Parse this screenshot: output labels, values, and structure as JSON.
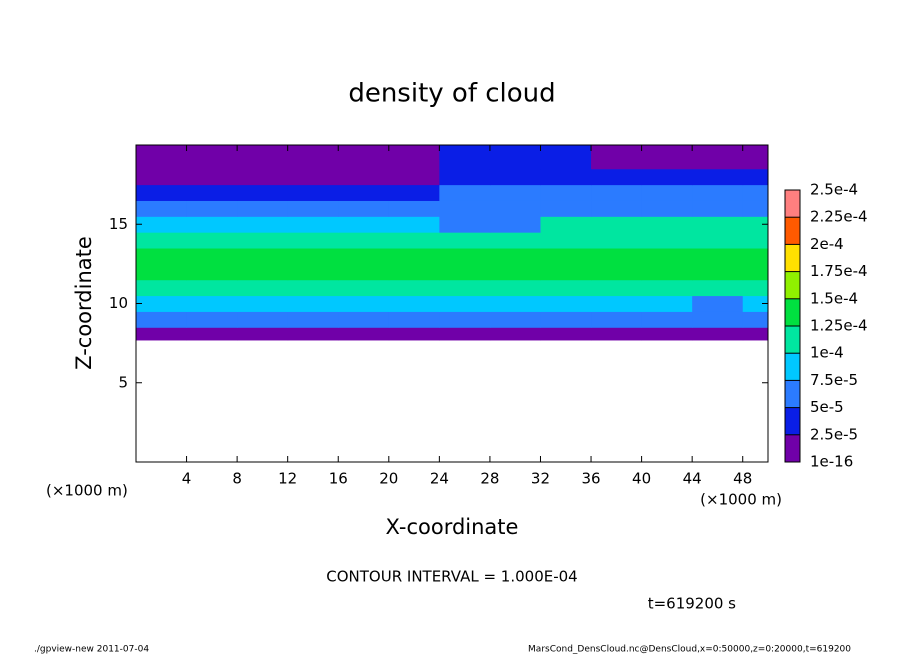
{
  "chart_data": {
    "type": "heatmap",
    "title": "density of cloud",
    "x_label": "X-coordinate",
    "y_label": "Z-coordinate",
    "x_unit_label": "(×1000 m)",
    "contour_note": "CONTOUR INTERVAL = 1.000E-04",
    "time_note": "t=619200 s",
    "footer_left": "./gpview-new  2011-07-04",
    "footer_right": "MarsCond_DensCloud.nc@DensCloud,x=0:50000,z=0:20000,t=619200",
    "xlim": [
      0,
      50
    ],
    "ylim": [
      0,
      20
    ],
    "xticks": [
      4,
      8,
      12,
      16,
      20,
      24,
      28,
      32,
      36,
      40,
      44,
      48
    ],
    "yticks": [
      5,
      10,
      15
    ],
    "xbins": [
      0,
      4,
      8,
      12,
      16,
      20,
      24,
      28,
      32,
      36,
      40,
      44,
      48,
      50
    ],
    "zbins": [
      7.7,
      8.5,
      9.5,
      10.5,
      11.5,
      12.5,
      13.5,
      14.5,
      15.5,
      16.5,
      17.5,
      18.5,
      20
    ],
    "values": [
      [
        1.5e-05,
        1.5e-05,
        1.5e-05,
        1.5e-05,
        1.5e-05,
        1.5e-05,
        1.5e-05,
        1.5e-05,
        1.5e-05,
        1.5e-05,
        1.5e-05,
        1.5e-05,
        1.5e-05
      ],
      [
        6e-05,
        6e-05,
        6e-05,
        6e-05,
        6e-05,
        6e-05,
        6e-05,
        6e-05,
        6e-05,
        6e-05,
        6e-05,
        5e-05,
        6e-05
      ],
      [
        9e-05,
        9e-05,
        9e-05,
        9e-05,
        9e-05,
        9e-05,
        9e-05,
        9e-05,
        9e-05,
        9e-05,
        9e-05,
        6e-05,
        9e-05
      ],
      [
        0.000115,
        0.000115,
        0.000115,
        0.000115,
        0.000115,
        0.000115,
        0.000115,
        0.000115,
        0.000115,
        0.000115,
        0.000115,
        0.000105,
        0.000115
      ],
      [
        0.00013,
        0.00013,
        0.00013,
        0.00013,
        0.00013,
        0.00013,
        0.00013,
        0.00013,
        0.00013,
        0.00013,
        0.00013,
        0.00013,
        0.00013
      ],
      [
        0.00013,
        0.00013,
        0.00013,
        0.00013,
        0.00013,
        0.00013,
        0.00013,
        0.00013,
        0.00013,
        0.00013,
        0.00013,
        0.00013,
        0.00013
      ],
      [
        0.000115,
        0.000115,
        0.000115,
        0.000115,
        0.000115,
        0.000115,
        0.0001,
        0.0001,
        0.000115,
        0.000115,
        0.000115,
        0.000115,
        0.000115
      ],
      [
        8e-05,
        8e-05,
        8e-05,
        8e-05,
        8e-05,
        8e-05,
        7e-05,
        7e-05,
        0.000105,
        0.000105,
        0.000105,
        0.000105,
        0.000105
      ],
      [
        6e-05,
        6e-05,
        6e-05,
        6e-05,
        6e-05,
        6e-05,
        7e-05,
        7e-05,
        7e-05,
        7e-05,
        7e-05,
        7e-05,
        7e-05
      ],
      [
        3e-05,
        3e-05,
        3e-05,
        3e-05,
        3e-05,
        3e-05,
        6e-05,
        6e-05,
        6e-05,
        5e-05,
        5e-05,
        5e-05,
        5e-05
      ],
      [
        1.5e-05,
        1.5e-05,
        1.5e-05,
        1.5e-05,
        1.5e-05,
        1.5e-05,
        4e-05,
        4e-05,
        4e-05,
        2.5e-05,
        2.5e-05,
        2.5e-05,
        2.5e-05
      ],
      [
        1e-05,
        1e-05,
        1e-05,
        1e-05,
        1e-05,
        1e-05,
        3e-05,
        3e-05,
        3e-05,
        1e-05,
        1e-05,
        1e-05,
        1e-05
      ]
    ],
    "levels": [
      {
        "value": 1e-16,
        "label": "1e-16"
      },
      {
        "value": 2.5e-05,
        "label": "2.5e-5"
      },
      {
        "value": 5e-05,
        "label": "5e-5"
      },
      {
        "value": 7.5e-05,
        "label": "7.5e-5"
      },
      {
        "value": 0.0001,
        "label": "1e-4"
      },
      {
        "value": 0.000125,
        "label": "1.25e-4"
      },
      {
        "value": 0.00015,
        "label": "1.5e-4"
      },
      {
        "value": 0.000175,
        "label": "1.75e-4"
      },
      {
        "value": 0.0002,
        "label": "2e-4"
      },
      {
        "value": 0.000225,
        "label": "2.25e-4"
      },
      {
        "value": 0.00025,
        "label": "2.5e-4"
      }
    ],
    "colors": [
      "#7000a8",
      "#0a1ee6",
      "#2b7bff",
      "#00c8ff",
      "#00e6a0",
      "#00e040",
      "#90f000",
      "#ffe000",
      "#ff5a00",
      "#ff7f7f"
    ]
  }
}
